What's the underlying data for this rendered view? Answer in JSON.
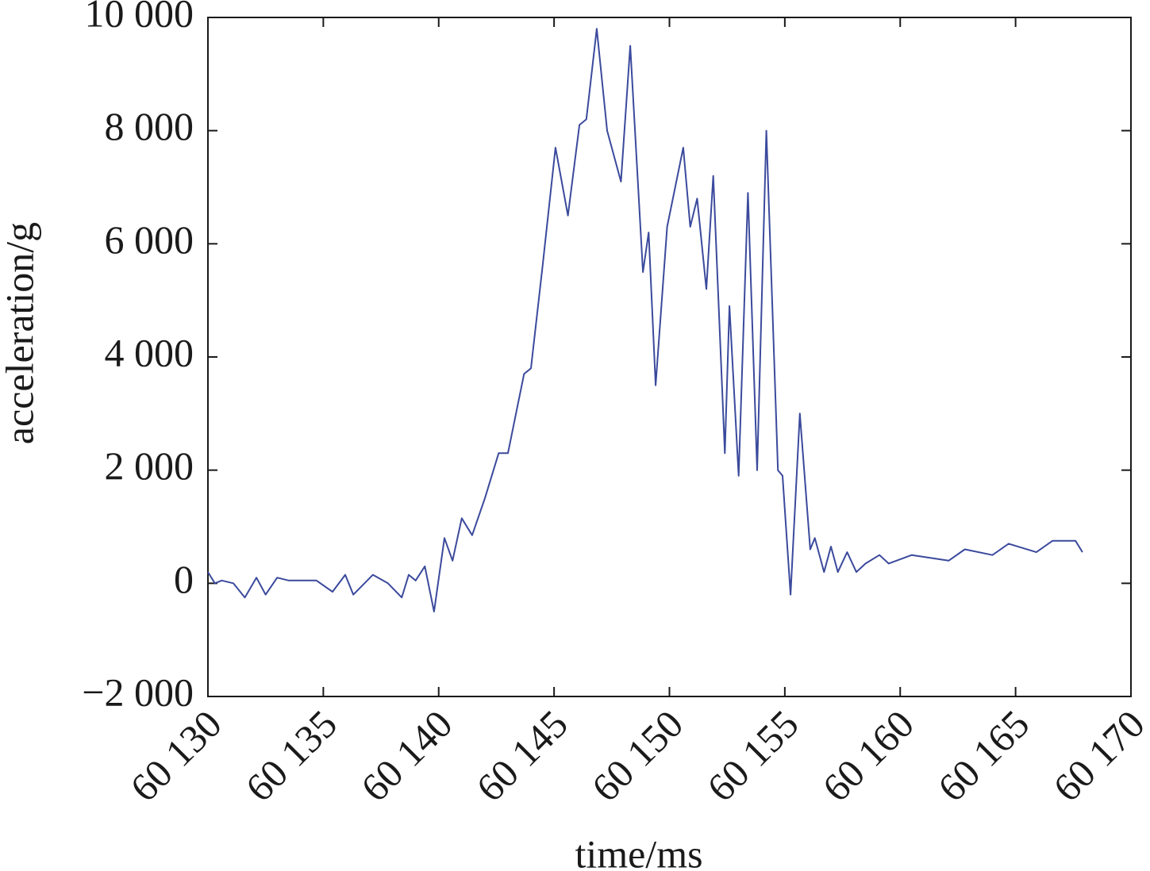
{
  "chart_data": {
    "type": "line",
    "xlabel": "time/ms",
    "ylabel": "acceleration/g",
    "x": [
      60130,
      60130.3,
      60130.6,
      60131.1,
      60131.6,
      60132.1,
      60132.5,
      60133.0,
      60133.5,
      60134.7,
      60135.4,
      60135.95,
      60136.3,
      60137.15,
      60137.8,
      60138.4,
      60138.7,
      60139.0,
      60139.4,
      60139.8,
      60140.25,
      60140.6,
      60141.0,
      60141.45,
      60142.0,
      60142.6,
      60143.0,
      60143.7,
      60144.0,
      60144.5,
      60145.06,
      60145.6,
      60146.1,
      60146.4,
      60146.85,
      60147.3,
      60147.9,
      60148.3,
      60148.85,
      60149.1,
      60149.4,
      60149.9,
      60150.6,
      60150.9,
      60151.2,
      60151.6,
      60151.9,
      60152.4,
      60152.6,
      60153.0,
      60153.4,
      60153.8,
      60154.2,
      60154.7,
      60154.9,
      60155.25,
      60155.65,
      60156.1,
      60156.3,
      60156.7,
      60157.0,
      60157.3,
      60157.7,
      60158.1,
      60158.5,
      60159.1,
      60159.5,
      60160.5,
      60162.1,
      60162.8,
      60164.0,
      60164.7,
      60165.9,
      60166.6,
      60167.6,
      60167.9
    ],
    "series": [
      {
        "name": "acceleration",
        "color": "#3b4a9c",
        "values": [
          200,
          0,
          50,
          0,
          -250,
          100,
          -200,
          100,
          50,
          50,
          -150,
          150,
          -200,
          150,
          0,
          -250,
          150,
          50,
          300,
          -500,
          800,
          400,
          1150,
          850,
          1500,
          2300,
          2300,
          3700,
          3800,
          5600,
          7700,
          6500,
          8100,
          8200,
          9800,
          8000,
          7100,
          9500,
          5500,
          6200,
          3500,
          6300,
          7700,
          6300,
          6800,
          5200,
          7200,
          2300,
          4900,
          1900,
          6900,
          2000,
          8000,
          2000,
          1900,
          -200,
          3000,
          600,
          800,
          200,
          650,
          200,
          550,
          200,
          350,
          500,
          350,
          500,
          400,
          600,
          500,
          700,
          550,
          750,
          750,
          550
        ]
      }
    ],
    "xlim": [
      60130,
      60170
    ],
    "xticks": [
      {
        "value": 60130,
        "label": "60 130"
      },
      {
        "value": 60135,
        "label": "60 135"
      },
      {
        "value": 60140,
        "label": "60 140"
      },
      {
        "value": 60145,
        "label": "60 145"
      },
      {
        "value": 60150,
        "label": "60 150"
      },
      {
        "value": 60155,
        "label": "60 155"
      },
      {
        "value": 60160,
        "label": "60 160"
      },
      {
        "value": 60165,
        "label": "60 165"
      },
      {
        "value": 60170,
        "label": "60 170"
      }
    ],
    "ylim": [
      -2000,
      10000
    ],
    "yticks": [
      {
        "value": -2000,
        "label": "−2 000"
      },
      0,
      {
        "value": 2000,
        "label": "2 000"
      },
      {
        "value": 4000,
        "label": "4 000"
      },
      {
        "value": 6000,
        "label": "6 000"
      },
      {
        "value": 8000,
        "label": "8 000"
      },
      {
        "value": 10000,
        "label": "10 000"
      }
    ],
    "grid": false
  }
}
